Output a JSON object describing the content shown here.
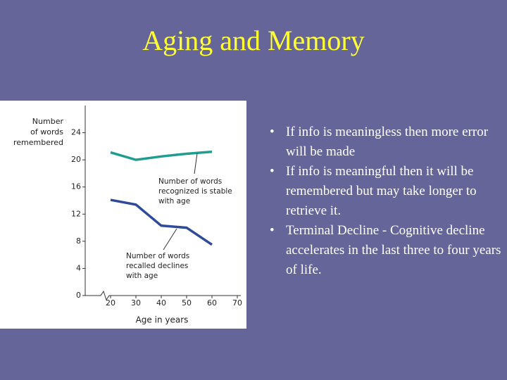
{
  "slide_title": "Aging and Memory",
  "bullets": [
    "If info is meaningless then more error will be made",
    "If info is meaningful then it will be remembered but may take longer to retrieve it.",
    "Terminal Decline - Cognitive decline accelerates in the last three to four years of life."
  ],
  "chart_data": {
    "type": "line",
    "y_label": [
      "Number",
      "of words",
      "remembered"
    ],
    "x_label": "Age in years",
    "x": [
      20,
      30,
      40,
      50,
      60
    ],
    "series": [
      {
        "name": [
          "Number of words",
          "recognized is stable",
          "with age"
        ],
        "color": "#1f9e90",
        "values": [
          21.1,
          20.0,
          20.5,
          20.9,
          21.2
        ]
      },
      {
        "name": [
          "Number of words",
          "recalled declines",
          "with age"
        ],
        "color": "#2e4a9b",
        "values": [
          14.1,
          13.4,
          10.3,
          10.0,
          7.5
        ]
      }
    ],
    "xlim": [
      10,
      70
    ],
    "xticks": [
      20,
      30,
      40,
      50,
      60,
      70
    ],
    "ylim": [
      0,
      28
    ],
    "yticks": [
      0,
      4,
      8,
      12,
      16,
      20,
      24
    ]
  }
}
